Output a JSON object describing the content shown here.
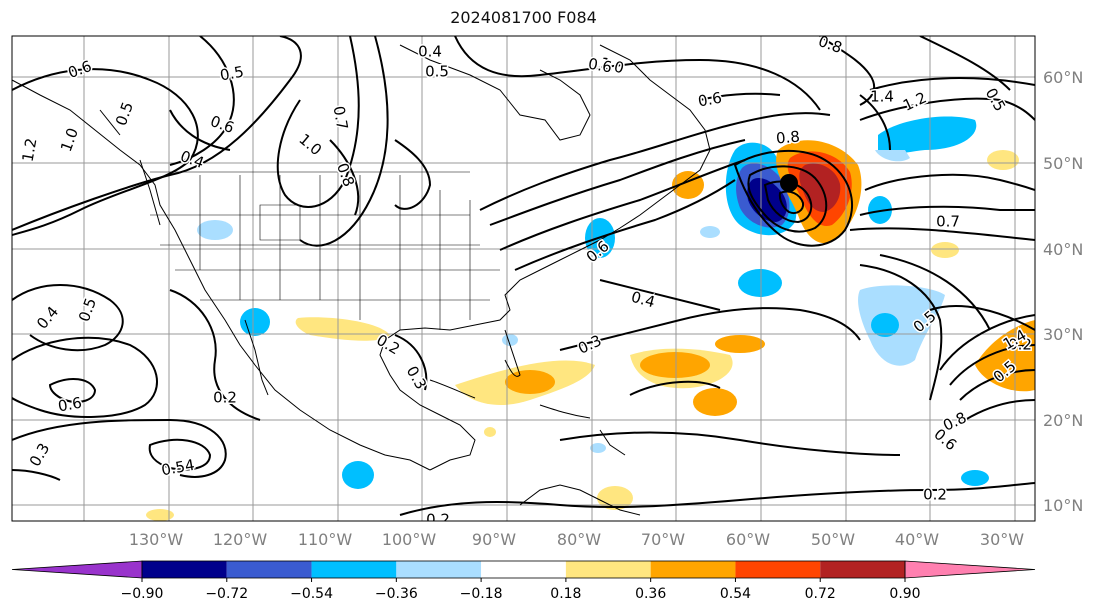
{
  "title": "2024081700 F084",
  "map": {
    "lon_labels": [
      "130°W",
      "120°W",
      "110°W",
      "100°W",
      "90°W",
      "80°W",
      "70°W",
      "60°W",
      "50°W",
      "40°W",
      "30°W"
    ],
    "lat_labels": [
      "60°N",
      "50°N",
      "40°N",
      "30°N",
      "20°N",
      "10°N"
    ],
    "grid": true,
    "storm_marker": "filled-circle"
  },
  "contour_labels": [
    "0.6",
    "0.5",
    "0.4",
    "0.5",
    "1.0",
    "0.8",
    "0.6",
    "1.4",
    "1.2",
    "0.5",
    "1.2",
    "1.0",
    "0.5",
    "0.6",
    "0.4",
    "1.0",
    "0.8",
    "0.7",
    "0.6",
    "0.8",
    "0.7",
    "0.4",
    "0.6",
    "0.2",
    "0.3",
    "0.5",
    "0.4",
    "0.6",
    "0.2",
    "0.3",
    "0.5",
    "0.2",
    "0.3",
    "0.54",
    "0.2",
    "0.8",
    "0.6",
    "0.2",
    "0.5",
    "1.4"
  ],
  "colorbar": {
    "colors": [
      "#9933cc",
      "#00008b",
      "#3a5bd0",
      "#00bfff",
      "#aadeff",
      "#ffffff",
      "#ffe680",
      "#ffa500",
      "#ff4500",
      "#b22222",
      "#ff80b0"
    ],
    "tick_labels": [
      "−0.90",
      "−0.72",
      "−0.54",
      "−0.36",
      "−0.18",
      "0.18",
      "0.36",
      "0.54",
      "0.72",
      "0.90"
    ]
  },
  "colors": {
    "neg_strong": "#00008b",
    "neg_mid": "#3a5bd0",
    "neg": "#00bfff",
    "neg_weak": "#aadeff",
    "pos_weak": "#ffe680",
    "pos": "#ffa500",
    "pos_mid": "#ff4500",
    "pos_strong": "#b22222"
  }
}
